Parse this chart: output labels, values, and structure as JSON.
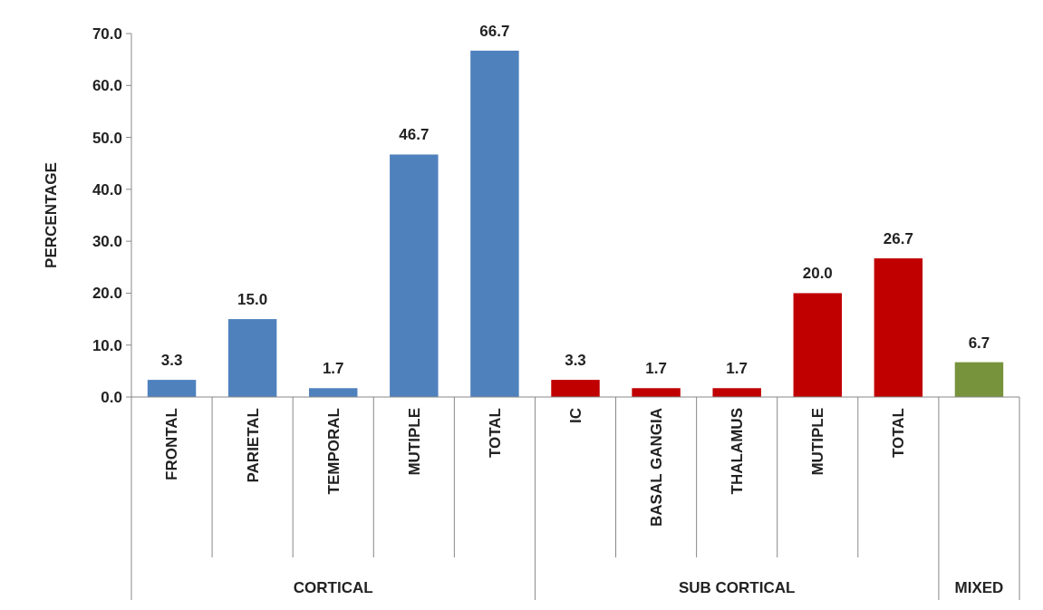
{
  "chart_data": {
    "type": "bar",
    "ylabel": "PERCENTAGE",
    "categories": [
      "FRONTAL",
      "PARIETAL",
      "TEMPORAL",
      "MUTIPLE",
      "TOTAL",
      "IC",
      "BASAL GANGIA",
      "THALAMUS",
      "MUTIPLE",
      "TOTAL",
      null
    ],
    "values": [
      3.3,
      15.0,
      1.7,
      46.7,
      66.7,
      3.3,
      1.7,
      1.7,
      20.0,
      26.7,
      6.7
    ],
    "value_labels": [
      "3.3",
      "15.0",
      "1.7",
      "46.7",
      "66.7",
      "3.3",
      "1.7",
      "1.7",
      "20.0",
      "26.7",
      "6.7"
    ],
    "colors": [
      "#4f81bd",
      "#4f81bd",
      "#4f81bd",
      "#4f81bd",
      "#4f81bd",
      "#c00000",
      "#c00000",
      "#c00000",
      "#c00000",
      "#c00000",
      "#77933c"
    ],
    "annotations": [
      "CORTICAL",
      "SUB CORTICAL",
      "MIXED"
    ],
    "ylim": [
      0,
      70
    ],
    "yticks": [
      {
        "value": 0,
        "label": "0.0"
      },
      {
        "value": 10,
        "label": "10.0"
      },
      {
        "value": 20,
        "label": "20.0"
      },
      {
        "value": 30,
        "label": "30.0"
      },
      {
        "value": 40,
        "label": "40.0"
      },
      {
        "value": 50,
        "label": "50.0"
      },
      {
        "value": 60,
        "label": "60.0"
      },
      {
        "value": 70,
        "label": "70.0"
      }
    ],
    "grid": false
  }
}
